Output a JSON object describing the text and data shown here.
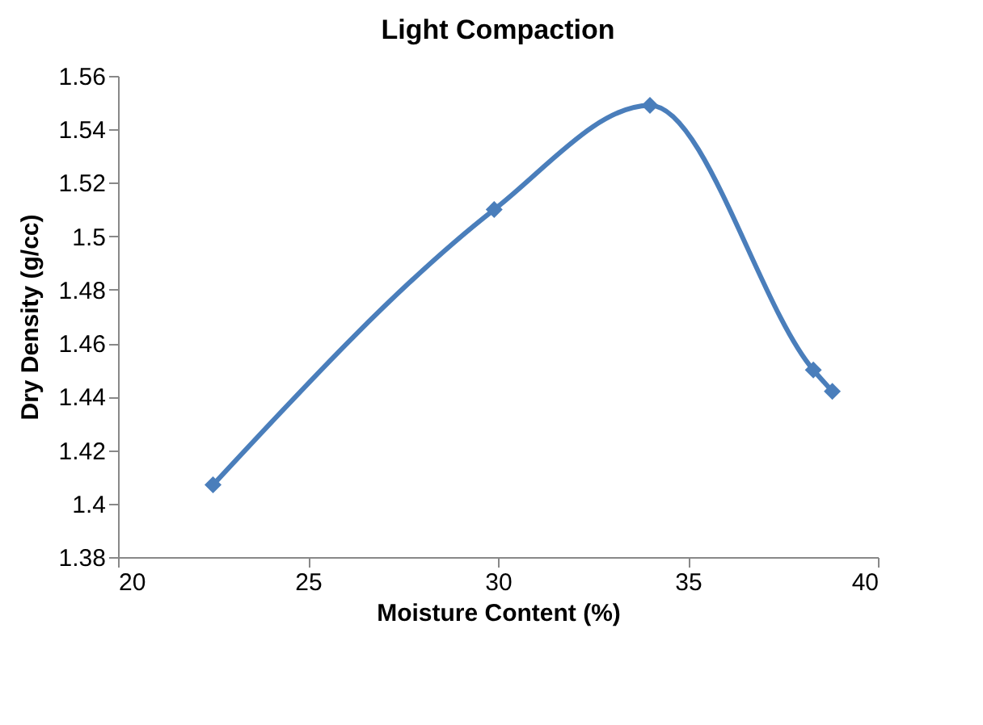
{
  "chart_data": {
    "type": "line",
    "title": "Light Compaction",
    "xlabel": "Moisture Content (%)",
    "ylabel": "Dry Density (g/cc)",
    "x": [
      22.5,
      29.9,
      34.0,
      38.3,
      38.8
    ],
    "series": [
      {
        "color": "#4a7ebb",
        "values": [
          1.407,
          1.51,
          1.549,
          1.45,
          1.442
        ]
      }
    ],
    "xlim": [
      20,
      40
    ],
    "xticks": [
      20,
      25,
      30,
      35,
      40
    ],
    "ylim": [
      1.38,
      1.56
    ],
    "yticks": [
      {
        "value": 1.38,
        "label": "1.38"
      },
      {
        "value": 1.4,
        "label": "1.4"
      },
      {
        "value": 1.42,
        "label": "1.42"
      },
      {
        "value": 1.44,
        "label": "1.44"
      },
      {
        "value": 1.46,
        "label": "1.46"
      },
      {
        "value": 1.48,
        "label": "1.48"
      },
      {
        "value": 1.5,
        "label": "1.5"
      },
      {
        "value": 1.52,
        "label": "1.52"
      },
      {
        "value": 1.54,
        "label": "1.54"
      },
      {
        "value": 1.56,
        "label": "1.56"
      }
    ],
    "marker": "diamond",
    "grid": false
  }
}
